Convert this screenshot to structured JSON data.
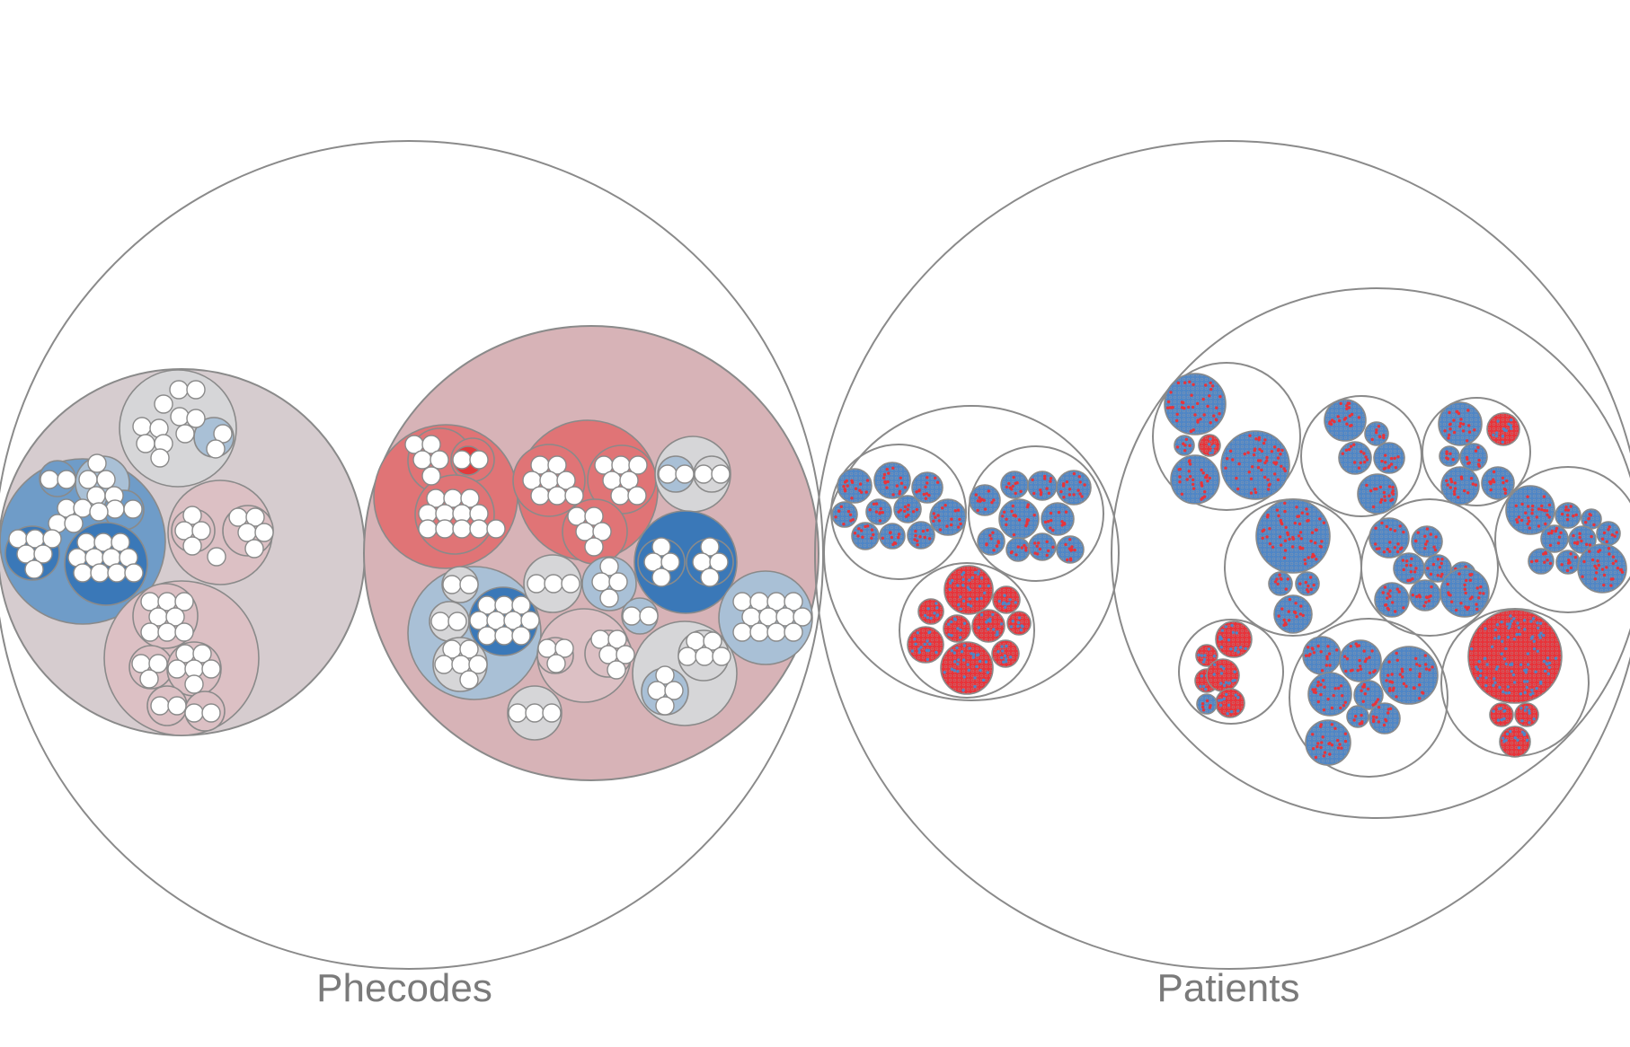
{
  "labels": {
    "left": "Phecodes",
    "right": "Patients"
  },
  "colors": {
    "outline": "#8a8a8a",
    "label": "#7a7a7a",
    "strong_blue": "#3a78b8",
    "medium_blue": "#6f9cc8",
    "light_blue": "#a9c0d6",
    "neutral_grey": "#d6d6d8",
    "mauve": "#d6cccf",
    "light_pink": "#dcc0c4",
    "pink": "#d7b3b7",
    "medium_red": "#e07476",
    "strong_red": "#e23a3c",
    "patient_blue": "#4f86c6",
    "patient_red": "#e8333a"
  },
  "legend": []
}
